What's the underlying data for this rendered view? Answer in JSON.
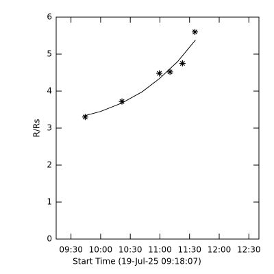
{
  "chart_data": {
    "type": "scatter",
    "x_label": "Start Time (19-Jul-25 09:18:07)",
    "y_label": "R/Rs",
    "xlim": [
      9.25,
      12.67
    ],
    "ylim": [
      0,
      6
    ],
    "xticks": [
      {
        "value": 9.5,
        "label": "09:30"
      },
      {
        "value": 10.0,
        "label": "10:00"
      },
      {
        "value": 10.5,
        "label": "10:30"
      },
      {
        "value": 11.0,
        "label": "11:00"
      },
      {
        "value": 11.5,
        "label": "11:30"
      },
      {
        "value": 12.0,
        "label": "12:00"
      },
      {
        "value": 12.5,
        "label": "12:30"
      }
    ],
    "yticks": [
      0,
      1,
      2,
      3,
      4,
      5,
      6
    ],
    "series": [
      {
        "marker": "star",
        "color": "#000000",
        "x": [
          9.74,
          10.36,
          10.99,
          11.17,
          11.38,
          11.59
        ],
        "values": [
          3.3,
          3.72,
          4.48,
          4.52,
          4.75,
          5.6
        ]
      },
      {
        "marker": "line",
        "color": "#000000",
        "x": [
          9.72,
          10.0,
          10.36,
          10.7,
          11.0,
          11.3,
          11.6
        ],
        "values": [
          3.33,
          3.45,
          3.68,
          3.98,
          4.35,
          4.8,
          5.38
        ]
      }
    ]
  }
}
